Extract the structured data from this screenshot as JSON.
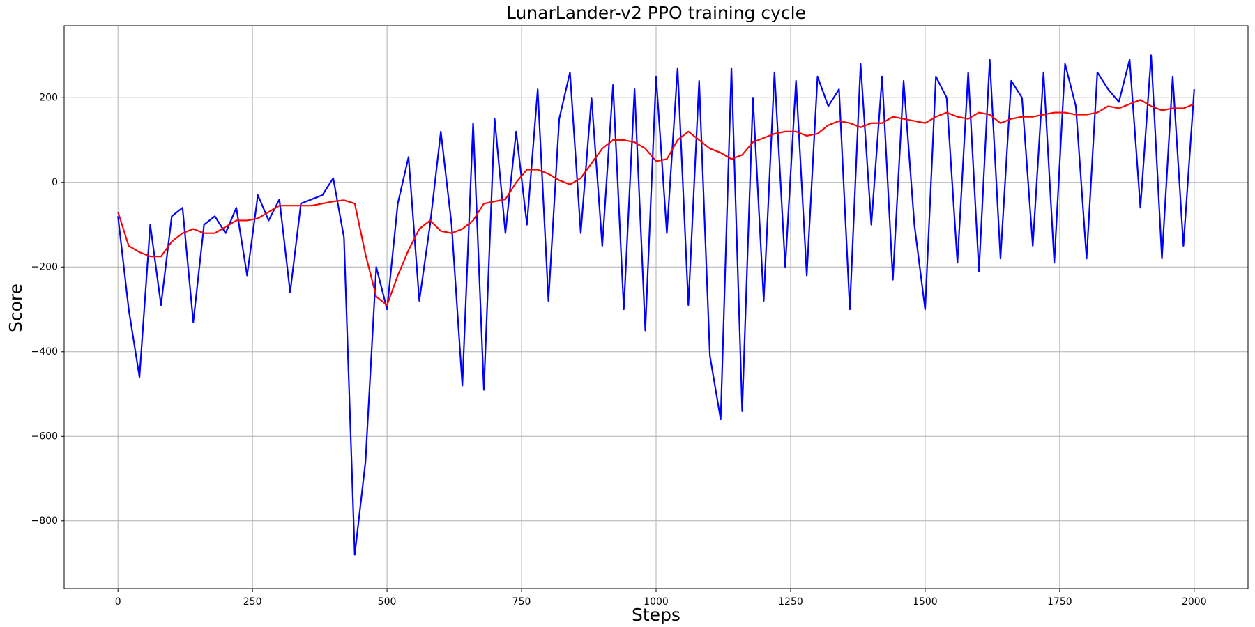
{
  "chart_data": {
    "type": "line",
    "title": "LunarLander-v2 PPO training cycle",
    "xlabel": "Steps",
    "ylabel": "Score",
    "x": [
      0,
      20,
      40,
      60,
      80,
      100,
      120,
      140,
      160,
      180,
      200,
      220,
      240,
      260,
      280,
      300,
      320,
      340,
      360,
      380,
      400,
      420,
      440,
      460,
      480,
      500,
      520,
      540,
      560,
      580,
      600,
      620,
      640,
      660,
      680,
      700,
      720,
      740,
      760,
      780,
      800,
      820,
      840,
      860,
      880,
      900,
      920,
      940,
      960,
      980,
      1000,
      1020,
      1040,
      1060,
      1080,
      1100,
      1120,
      1140,
      1160,
      1180,
      1200,
      1220,
      1240,
      1260,
      1280,
      1300,
      1320,
      1340,
      1360,
      1380,
      1400,
      1420,
      1440,
      1460,
      1480,
      1500,
      1520,
      1540,
      1560,
      1580,
      1600,
      1620,
      1640,
      1660,
      1680,
      1700,
      1720,
      1740,
      1760,
      1780,
      1800,
      1820,
      1840,
      1860,
      1880,
      1900,
      1920,
      1940,
      1960,
      1980,
      2000
    ],
    "series": [
      {
        "color": "#0000ff",
        "values": [
          -80,
          -300,
          -460,
          -100,
          -290,
          -80,
          -60,
          -330,
          -100,
          -80,
          -120,
          -60,
          -220,
          -30,
          -90,
          -40,
          -260,
          -50,
          -40,
          -30,
          10,
          -130,
          -880,
          -660,
          -200,
          -300,
          -50,
          60,
          -280,
          -100,
          120,
          -100,
          -480,
          140,
          -490,
          150,
          -120,
          120,
          -100,
          220,
          -280,
          150,
          260,
          -120,
          200,
          -150,
          230,
          -300,
          220,
          -350,
          250,
          -120,
          270,
          -290,
          240,
          -410,
          -560,
          270,
          -540,
          200,
          -280,
          260,
          -200,
          240,
          -220,
          250,
          180,
          220,
          -300,
          280,
          -100,
          250,
          -230,
          240,
          -100,
          -300,
          250,
          200,
          -190,
          260,
          -210,
          290,
          -180,
          240,
          200,
          -150,
          260,
          -190,
          280,
          180,
          -180,
          260,
          220,
          190,
          290,
          -60,
          300,
          -180,
          250,
          -150,
          220
        ]
      },
      {
        "color": "#ff0000",
        "values": [
          -70,
          -150,
          -165,
          -175,
          -175,
          -140,
          -120,
          -110,
          -120,
          -120,
          -105,
          -90,
          -90,
          -85,
          -70,
          -55,
          -55,
          -55,
          -55,
          -50,
          -45,
          -42,
          -50,
          -170,
          -270,
          -290,
          -220,
          -160,
          -110,
          -90,
          -115,
          -120,
          -110,
          -90,
          -50,
          -45,
          -40,
          0,
          30,
          30,
          20,
          5,
          -5,
          10,
          45,
          80,
          100,
          100,
          95,
          80,
          50,
          55,
          100,
          120,
          100,
          80,
          70,
          55,
          65,
          95,
          105,
          115,
          120,
          120,
          110,
          115,
          135,
          145,
          140,
          130,
          140,
          140,
          155,
          150,
          145,
          140,
          155,
          165,
          155,
          150,
          165,
          160,
          140,
          150,
          155,
          155,
          160,
          165,
          165,
          160,
          160,
          165,
          180,
          175,
          185,
          195,
          180,
          170,
          175,
          175,
          185
        ]
      }
    ],
    "xlim": [
      -100,
      2100
    ],
    "ylim": [
      -960,
      370
    ],
    "xticks": [
      0,
      250,
      500,
      750,
      1000,
      1250,
      1500,
      1750,
      2000
    ],
    "yticks": [
      {
        "value": -800,
        "label": "−800"
      },
      {
        "value": -600,
        "label": "−600"
      },
      {
        "value": -400,
        "label": "−400"
      },
      {
        "value": -200,
        "label": "−200"
      },
      0,
      200
    ],
    "grid": true
  }
}
